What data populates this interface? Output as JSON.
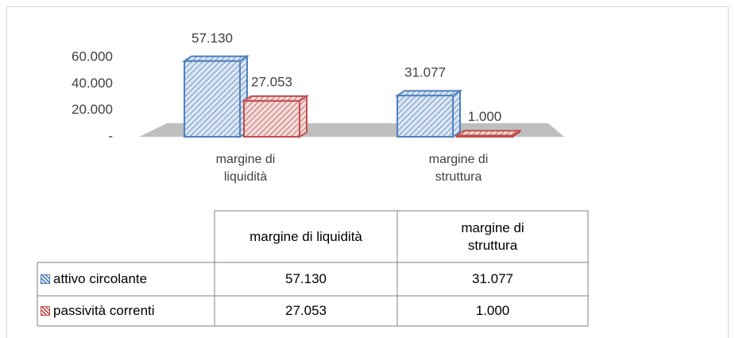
{
  "chart_data": {
    "type": "bar3d",
    "categories": [
      "margine di liquidità",
      "margine di struttura"
    ],
    "series": [
      {
        "name": "attivo circolante",
        "color": "#4f81bd",
        "values": [
          57130,
          31077
        ],
        "value_labels": [
          "57.130",
          "31.077"
        ]
      },
      {
        "name": "passività correnti",
        "color": "#c0504d",
        "values": [
          27053,
          1000
        ],
        "value_labels": [
          "27.053",
          "1.000"
        ]
      }
    ],
    "ylim": [
      0,
      60000
    ],
    "yticks": [
      {
        "value": 0,
        "label": "-"
      },
      {
        "value": 20000,
        "label": "20.000"
      },
      {
        "value": 40000,
        "label": "40.000"
      },
      {
        "value": 60000,
        "label": "60.000"
      }
    ],
    "data_table": true
  }
}
